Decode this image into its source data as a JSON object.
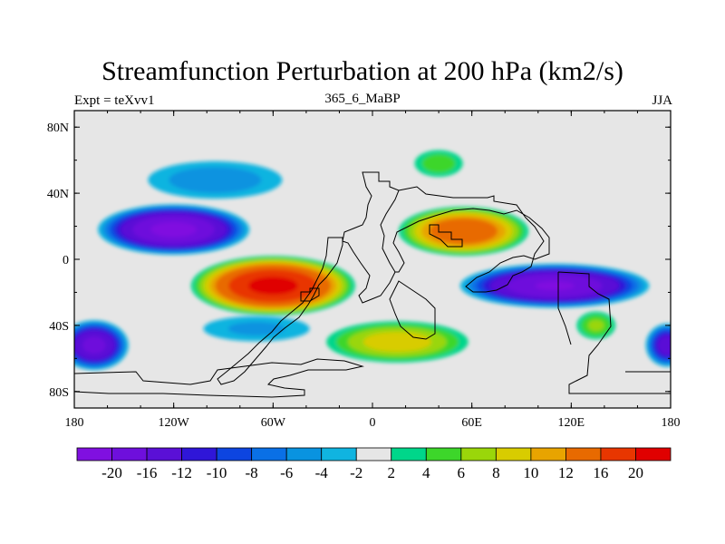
{
  "title": "Streamfunction Perturbation at 200 hPa (km2/s)",
  "left_string": "Expt = teXvv1",
  "center_string": "365_6_MaBP",
  "right_string": "JJA",
  "map": {
    "lon_labels": [
      {
        "lon": -180,
        "text": "180"
      },
      {
        "lon": -120,
        "text": "120W"
      },
      {
        "lon": -60,
        "text": "60W"
      },
      {
        "lon": 0,
        "text": "0"
      },
      {
        "lon": 60,
        "text": "60E"
      },
      {
        "lon": 120,
        "text": "120E"
      },
      {
        "lon": 180,
        "text": "180"
      }
    ],
    "lat_labels": [
      {
        "lat": 80,
        "text": "80N"
      },
      {
        "lat": 40,
        "text": "40N"
      },
      {
        "lat": 0,
        "text": "0"
      },
      {
        "lat": -40,
        "text": "40S"
      },
      {
        "lat": -80,
        "text": "80S"
      }
    ],
    "lon_range": [
      -180,
      180
    ],
    "lat_range": [
      -90,
      90
    ],
    "background_color": "#e6e6e6",
    "features": [
      {
        "kind": "low",
        "lon": -120,
        "lat": 18,
        "rx": 48,
        "ry": 16,
        "peak": -21
      },
      {
        "kind": "high",
        "lon": -60,
        "lat": -16,
        "rx": 52,
        "ry": 19,
        "peak": 21
      },
      {
        "kind": "high",
        "lon": 55,
        "lat": 17,
        "rx": 42,
        "ry": 16,
        "peak": 15
      },
      {
        "kind": "low",
        "lon": 110,
        "lat": -16,
        "rx": 60,
        "ry": 14,
        "peak": -20
      },
      {
        "kind": "low",
        "lon": -168,
        "lat": -52,
        "rx": 22,
        "ry": 16,
        "peak": -17
      },
      {
        "kind": "low",
        "lon": 178,
        "lat": -52,
        "rx": 14,
        "ry": 14,
        "peak": -14
      },
      {
        "kind": "high",
        "lon": 15,
        "lat": -50,
        "rx": 48,
        "ry": 14,
        "peak": 9
      },
      {
        "kind": "high",
        "lon": 40,
        "lat": 58,
        "rx": 18,
        "ry": 10,
        "peak": 5
      },
      {
        "kind": "low",
        "lon": -95,
        "lat": 48,
        "rx": 50,
        "ry": 14,
        "peak": -5
      },
      {
        "kind": "high",
        "lon": 135,
        "lat": -40,
        "rx": 14,
        "ry": 10,
        "peak": 6
      },
      {
        "kind": "low",
        "lon": -70,
        "lat": -42,
        "rx": 42,
        "ry": 10,
        "peak": -4
      }
    ]
  },
  "colorbar": {
    "colors": [
      "#8010e0",
      "#6e0fdc",
      "#5a10d6",
      "#2f16d8",
      "#0d45e0",
      "#0a70e6",
      "#0993e0",
      "#10b4e0",
      "#e6e6e6",
      "#00d68a",
      "#3dd62a",
      "#9ad60a",
      "#d8cc00",
      "#e8a400",
      "#e86a00",
      "#e83600",
      "#e00000"
    ],
    "labels": [
      "-20",
      "-16",
      "-12",
      "-10",
      "-8",
      "-6",
      "-4",
      "-2",
      "2",
      "4",
      "6",
      "8",
      "10",
      "12",
      "16",
      "20"
    ]
  }
}
